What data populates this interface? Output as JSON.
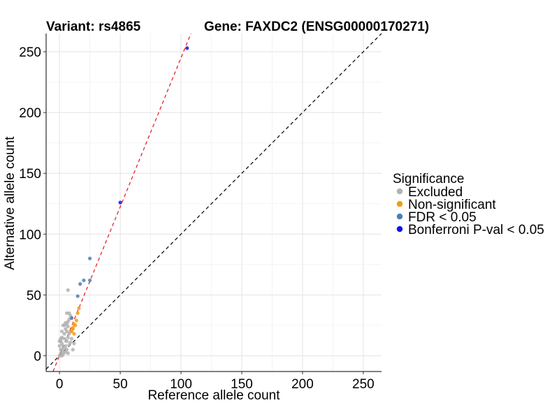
{
  "chart_data": {
    "type": "scatter",
    "title_left": "Variant: rs4865",
    "title_right": "Gene: FAXDC2 (ENSG00000170271)",
    "xlabel": "Reference allele count",
    "ylabel": "Alternative allele count",
    "xlim": [
      -11,
      265
    ],
    "ylim": [
      -13,
      265
    ],
    "x_ticks": [
      0,
      50,
      100,
      150,
      200,
      250
    ],
    "y_ticks": [
      0,
      50,
      100,
      150,
      200,
      250
    ],
    "grid": true,
    "legend": {
      "title": "Significance",
      "position": "right",
      "items": [
        {
          "label": "Excluded",
          "color": "#b2b2b2"
        },
        {
          "label": "Non-significant",
          "color": "#f39c12"
        },
        {
          "label": "FDR < 0.05",
          "color": "#4a7fb5"
        },
        {
          "label": "Bonferroni P-val < 0.05",
          "color": "#0a14f0"
        }
      ]
    },
    "reference_lines": [
      {
        "name": "identity-line",
        "slope": 1,
        "intercept": 0,
        "color": "#000000",
        "style": "dashed"
      },
      {
        "name": "fit-line",
        "slope": 2.45,
        "intercept": 0,
        "color": "#e8141a",
        "style": "dashed"
      }
    ],
    "series": [
      {
        "name": "Excluded",
        "color": "#b2b2b2",
        "points": [
          [
            0,
            0
          ],
          [
            1,
            2
          ],
          [
            2,
            5
          ],
          [
            3,
            8
          ],
          [
            1,
            12
          ],
          [
            2,
            15
          ],
          [
            4,
            18
          ],
          [
            5,
            22
          ],
          [
            3,
            25
          ],
          [
            6,
            26
          ],
          [
            7,
            28
          ],
          [
            8,
            30
          ],
          [
            9,
            33
          ],
          [
            8,
            35
          ],
          [
            10,
            31
          ],
          [
            7,
            24
          ],
          [
            6,
            20
          ],
          [
            4,
            14
          ],
          [
            2,
            10
          ],
          [
            5,
            8
          ],
          [
            6,
            12
          ],
          [
            7,
            15
          ],
          [
            8,
            18
          ],
          [
            9,
            20
          ],
          [
            3,
            3
          ],
          [
            1,
            5
          ],
          [
            0,
            8
          ],
          [
            2,
            20
          ],
          [
            4,
            25
          ],
          [
            5,
            27
          ],
          [
            6,
            5
          ],
          [
            7,
            2
          ],
          [
            8,
            9
          ],
          [
            9,
            11
          ],
          [
            10,
            14
          ],
          [
            11,
            5
          ],
          [
            12,
            10
          ],
          [
            5,
            3
          ],
          [
            3,
            1
          ],
          [
            2,
            0
          ],
          [
            6,
            35
          ],
          [
            7,
            54
          ],
          [
            4,
            6
          ],
          [
            1,
            14
          ],
          [
            0,
            12
          ]
        ]
      },
      {
        "name": "Non-significant",
        "color": "#f39c12",
        "points": [
          [
            10,
            20
          ],
          [
            11,
            23
          ],
          [
            12,
            26
          ],
          [
            13,
            25
          ],
          [
            14,
            29
          ],
          [
            15,
            35
          ],
          [
            12,
            18
          ],
          [
            11,
            22
          ],
          [
            16,
            39
          ]
        ]
      },
      {
        "name": "FDR < 0.05",
        "color": "#4a7fb5",
        "points": [
          [
            10,
            31
          ],
          [
            15,
            49
          ],
          [
            17,
            59
          ],
          [
            20,
            62
          ],
          [
            25,
            62
          ],
          [
            25,
            80
          ]
        ]
      },
      {
        "name": "Bonferroni P-val < 0.05",
        "color": "#0a14f0",
        "points": [
          [
            50,
            126
          ],
          [
            105,
            253
          ]
        ]
      }
    ]
  }
}
